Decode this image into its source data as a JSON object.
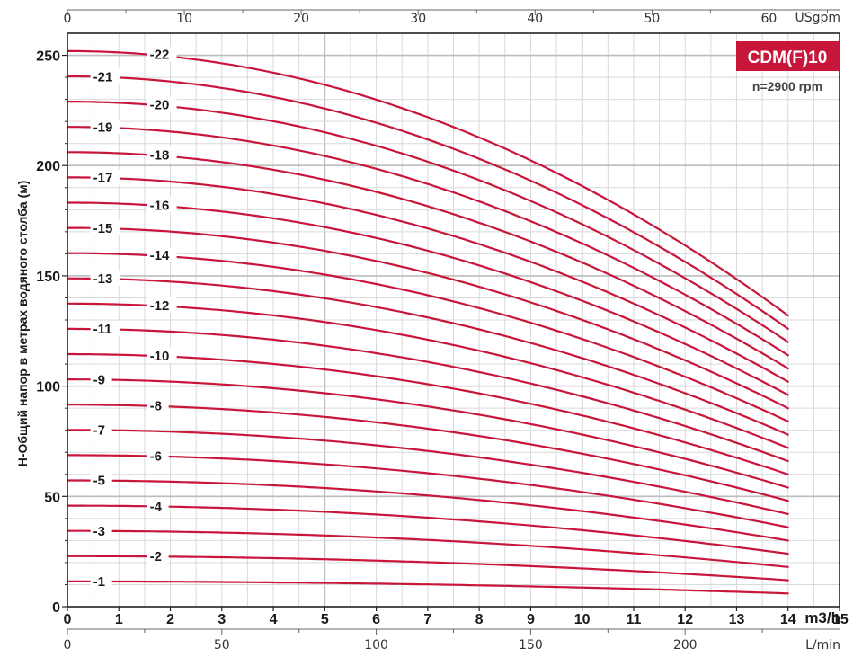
{
  "chart_data": {
    "type": "line",
    "model": "CDM(F)10",
    "speed": "n=2900 rpm",
    "ylabel": "H-Общий напор в метрах водяного столба (м)",
    "x_main": {
      "unit": "m3/h",
      "ticks": [
        "0",
        "1",
        "2",
        "3",
        "4",
        "5",
        "6",
        "7",
        "8",
        "9",
        "10",
        "11",
        "12",
        "13",
        "14",
        "15"
      ],
      "range": [
        0,
        15
      ]
    },
    "x_top": {
      "unit": "USgpm",
      "ticks": [
        "0",
        "10",
        "20",
        "30",
        "40",
        "50",
        "60"
      ],
      "range": [
        0,
        66.04
      ]
    },
    "x_bottom": {
      "unit": "L/min",
      "ticks": [
        "0",
        "50",
        "100",
        "150",
        "200"
      ],
      "range": [
        0,
        250
      ]
    },
    "y": {
      "ticks": [
        "0",
        "50",
        "100",
        "150",
        "200",
        "250"
      ],
      "range": [
        0,
        260
      ]
    },
    "grid": true,
    "x_end": 14,
    "shutoff_per_stage": 11.45,
    "end_head_per_stage": 6.0,
    "series": [
      {
        "name": "-1",
        "stages": 1
      },
      {
        "name": "-2",
        "stages": 2
      },
      {
        "name": "-3",
        "stages": 3
      },
      {
        "name": "-4",
        "stages": 4
      },
      {
        "name": "-5",
        "stages": 5
      },
      {
        "name": "-6",
        "stages": 6
      },
      {
        "name": "-7",
        "stages": 7
      },
      {
        "name": "-8",
        "stages": 8
      },
      {
        "name": "-9",
        "stages": 9
      },
      {
        "name": "-10",
        "stages": 10
      },
      {
        "name": "-11",
        "stages": 11
      },
      {
        "name": "-12",
        "stages": 12
      },
      {
        "name": "-13",
        "stages": 13
      },
      {
        "name": "-14",
        "stages": 14
      },
      {
        "name": "-15",
        "stages": 15
      },
      {
        "name": "-16",
        "stages": 16
      },
      {
        "name": "-17",
        "stages": 17
      },
      {
        "name": "-18",
        "stages": 18
      },
      {
        "name": "-19",
        "stages": 19
      },
      {
        "name": "-20",
        "stages": 20
      },
      {
        "name": "-21",
        "stages": 21
      },
      {
        "name": "-22",
        "stages": 22
      }
    ],
    "colors": {
      "curve": "#c8163b",
      "badge": "#c8163b",
      "grid_minor": "#d9d9d9",
      "grid_major": "#bdbdbd",
      "frame": "#222222"
    }
  }
}
